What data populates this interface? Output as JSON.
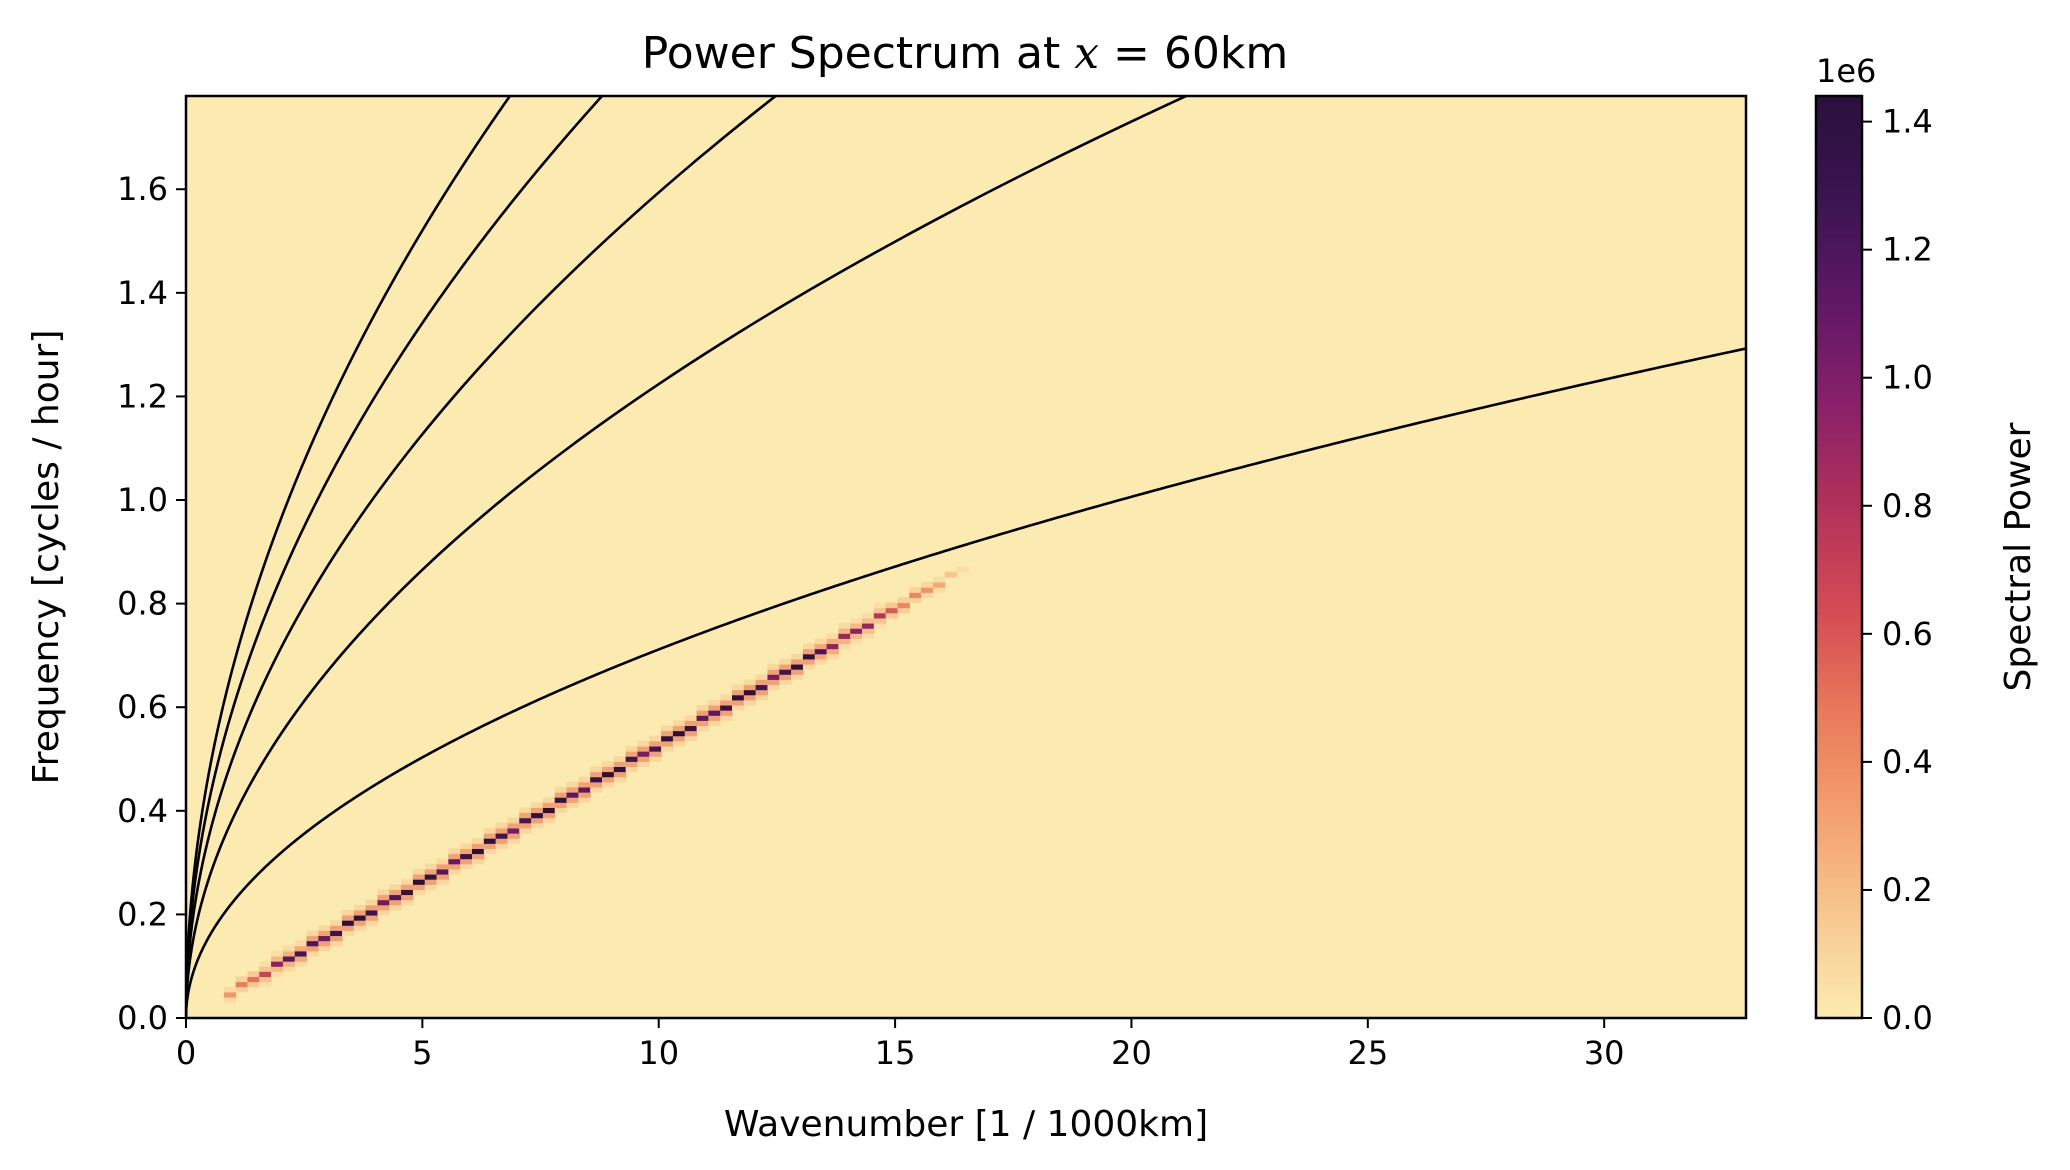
{
  "chart_data": {
    "type": "heatmap",
    "title_prefix": "Power Spectrum at ",
    "title_var": "x",
    "title_eq": " = ",
    "title_value": "60km",
    "xlabel": "Wavenumber [1 / 1000km]",
    "ylabel": "Frequency [cycles / hour]",
    "xlim": [
      0,
      33
    ],
    "ylim": [
      0,
      1.78
    ],
    "xticks": [
      0,
      5,
      10,
      15,
      20,
      25,
      30
    ],
    "xtick_labels": [
      "0",
      "5",
      "10",
      "15",
      "20",
      "25",
      "30"
    ],
    "yticks": [
      0.0,
      0.2,
      0.4,
      0.6,
      0.8,
      1.0,
      1.2,
      1.4,
      1.6
    ],
    "ytick_labels": [
      "0.0",
      "0.2",
      "0.4",
      "0.6",
      "0.8",
      "1.0",
      "1.2",
      "1.4",
      "1.6"
    ],
    "dispersion_curves": [
      {
        "mode": 1,
        "coef": 0.225,
        "points": [
          [
            0,
            0
          ],
          [
            5,
            0.5
          ],
          [
            10,
            0.71
          ],
          [
            15,
            0.87
          ],
          [
            20,
            1.0
          ],
          [
            33,
            1.29
          ]
        ]
      },
      {
        "mode": 2,
        "coef": 0.387,
        "points": [
          [
            0,
            0
          ],
          [
            5,
            0.86
          ],
          [
            10,
            1.22
          ],
          [
            15,
            1.49
          ],
          [
            20.8,
            1.78
          ]
        ]
      },
      {
        "mode": 3,
        "coef": 0.504,
        "points": [
          [
            0,
            0
          ],
          [
            5,
            1.13
          ],
          [
            10,
            1.59
          ],
          [
            12.4,
            1.78
          ]
        ]
      },
      {
        "mode": 4,
        "coef": 0.6,
        "points": [
          [
            0,
            0
          ],
          [
            5,
            1.34
          ],
          [
            8.8,
            1.78
          ]
        ]
      },
      {
        "mode": 5,
        "coef": 0.68,
        "points": [
          [
            0,
            0
          ],
          [
            5,
            1.52
          ],
          [
            6.9,
            1.78
          ]
        ]
      }
    ],
    "power_ridge": {
      "slope": 0.0528,
      "k_range": [
        0.8,
        16.5
      ],
      "peak": 1440000.0,
      "points": [
        [
          1,
          0.05
        ],
        [
          3,
          0.16
        ],
        [
          5,
          0.265
        ],
        [
          7,
          0.37
        ],
        [
          9,
          0.475
        ],
        [
          11,
          0.58
        ],
        [
          13,
          0.685
        ],
        [
          15,
          0.79
        ]
      ]
    },
    "colorbar": {
      "label": "Spectral Power",
      "offset_text": "1e6",
      "vmin": 0.0,
      "vmax": 1.44,
      "ticks": [
        0.0,
        0.2,
        0.4,
        0.6,
        0.8,
        1.0,
        1.2,
        1.4
      ],
      "tick_labels": [
        "0.0",
        "0.2",
        "0.4",
        "0.6",
        "0.8",
        "1.0",
        "1.2",
        "1.4"
      ],
      "colormap": "magma_r-like",
      "colors": [
        "#fcebb0",
        "#f7c890",
        "#f4a070",
        "#e97a5a",
        "#d44c54",
        "#b0305a",
        "#87206a",
        "#5e1865",
        "#3a1450",
        "#2a103d"
      ]
    },
    "background_color": "#fcebb0",
    "curve_color": "#000000"
  }
}
